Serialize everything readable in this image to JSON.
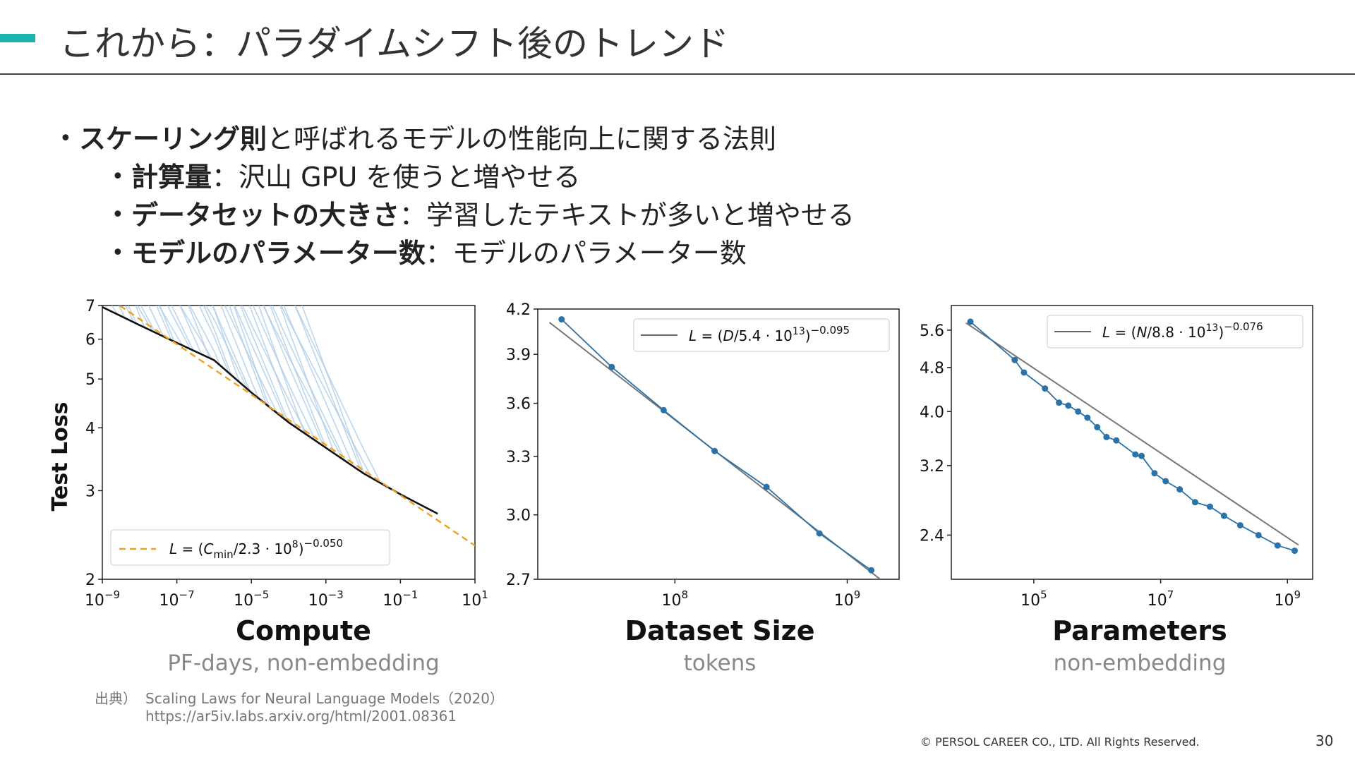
{
  "slide": {
    "title": "これから：パラダイムシフト後のトレンド",
    "page_number": "30",
    "footer": "© PERSOL CAREER CO., LTD. All Rights Reserved."
  },
  "bullets": {
    "main_bold": "スケーリング則",
    "main_rest": "と呼ばれるモデルの性能向上に関する法則",
    "sub": [
      {
        "bold": "計算量",
        "rest": "：沢山 GPU を使うと増やせる"
      },
      {
        "bold": "データセットの大きさ",
        "rest": "：学習したテキストが多いと増やせる"
      },
      {
        "bold": "モデルのパラメーター数",
        "rest": "：モデルのパラメーター数"
      }
    ]
  },
  "source": {
    "label": "出典）",
    "line1": "Scaling Laws for Neural Language Models（2020）",
    "line2": "https://ar5iv.labs.arxiv.org/html/2001.08361"
  },
  "chart_data": [
    {
      "type": "line",
      "title": "Compute",
      "subtitle": "PF-days, non-embedding",
      "ylabel": "Test Loss",
      "xscale": "log",
      "yscale": "log",
      "xlim": [
        1e-09,
        10
      ],
      "ylim": [
        2,
        7
      ],
      "x_ticks": [
        -9,
        -7,
        -5,
        -3,
        -1,
        1
      ],
      "y_ticks": [
        "7",
        "6",
        "5",
        "4",
        "3",
        "2"
      ],
      "legend": "L = (Cmin/2.3 · 10^8)^−0.050",
      "legend_position": "bottom-left",
      "fit": {
        "C": 230000000.0,
        "alpha": 0.05,
        "color": "#f0a020",
        "style": "dashed"
      },
      "frontier": {
        "x": [
          1e-09,
          1e-08,
          1e-07,
          1e-06,
          1e-05,
          0.0001,
          0.001,
          0.01,
          0.1,
          1
        ],
        "y": [
          6.95,
          6.4,
          5.9,
          5.45,
          4.7,
          4.1,
          3.65,
          3.25,
          2.95,
          2.7
        ]
      },
      "series_color": "#a8c8e6"
    },
    {
      "type": "line",
      "title": "Dataset Size",
      "subtitle": "tokens",
      "xscale": "log",
      "yscale": "log",
      "xlim": [
        16000000.0,
        2000000000.0
      ],
      "ylim": [
        2.7,
        4.2
      ],
      "x_ticks": [
        8,
        9
      ],
      "y_ticks": [
        "4.2",
        "3.9",
        "3.6",
        "3.3",
        "3.0",
        "2.7"
      ],
      "legend": "L = (D/5.4 · 10^13)^−0.095",
      "legend_position": "top-right",
      "fit": {
        "D": 54000000000000.0,
        "alpha": 0.095,
        "color": "#777777"
      },
      "points": {
        "x": [
          22000000.0,
          43000000.0,
          86000000.0,
          170000000.0,
          340000000.0,
          690000000.0,
          1380000000.0
        ],
        "y": [
          4.13,
          3.82,
          3.56,
          3.33,
          3.14,
          2.91,
          2.74
        ]
      },
      "point_color": "#2b72a8"
    },
    {
      "type": "line",
      "title": "Parameters",
      "subtitle": "non-embedding",
      "xscale": "log",
      "yscale": "log",
      "xlim": [
        5000.0,
        2500000000.0
      ],
      "ylim": [
        2.0,
        6.2
      ],
      "x_ticks": [
        5,
        7,
        9
      ],
      "y_ticks": [
        "5.6",
        "4.8",
        "4.0",
        "3.2",
        "2.4"
      ],
      "legend": "L = (N/8.8 · 10^13)^−0.076",
      "legend_position": "top-right",
      "fit": {
        "N": 88000000000000.0,
        "alpha": 0.076,
        "color": "#777777"
      },
      "points": {
        "x": [
          10000.0,
          50000.0,
          70000.0,
          150000.0,
          250000.0,
          350000.0,
          500000.0,
          700000.0,
          1000000.0,
          1400000.0,
          2000000.0,
          4000000.0,
          5000000.0,
          8000000.0,
          12000000.0,
          20000000.0,
          35000000.0,
          60000000.0,
          100000000.0,
          180000000.0,
          350000000.0,
          700000000.0,
          1300000000.0
        ],
        "y": [
          5.8,
          4.95,
          4.7,
          4.4,
          4.15,
          4.1,
          4.0,
          3.9,
          3.75,
          3.6,
          3.55,
          3.35,
          3.33,
          3.1,
          3.0,
          2.9,
          2.75,
          2.7,
          2.6,
          2.5,
          2.4,
          2.3,
          2.25
        ]
      },
      "point_color": "#2b72a8"
    }
  ]
}
